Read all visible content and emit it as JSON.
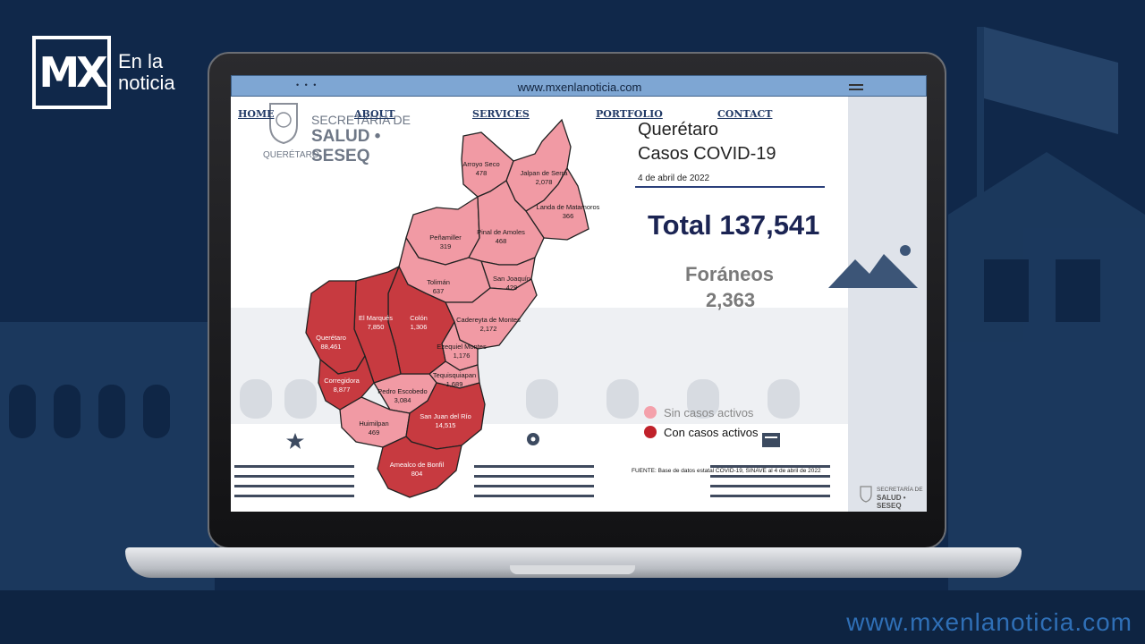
{
  "brand": {
    "logo_letters": "MX",
    "logo_text_line1": "En la",
    "logo_text_line2": "noticia",
    "footer_url": "www.mxenlanoticia.com"
  },
  "browser": {
    "url": "www.mxenlanoticia.com",
    "dots": "• • •",
    "nav": [
      "HOME",
      "ABOUT",
      "SERVICES",
      "PORTFOLIO",
      "CONTACT"
    ]
  },
  "agency": {
    "line1": "SECRETARÍA DE",
    "line2": "SALUD • SESEQ",
    "line3": "QUERÉTARO",
    "mini_line1": "SECRETARÍA DE",
    "mini_line2": "SALUD • SESEQ"
  },
  "report": {
    "title_line1": "Querétaro",
    "title_line2": "Casos COVID-19",
    "date": "4 de abril de 2022",
    "total": "Total 137,541",
    "foraneos_label": "Foráneos",
    "foraneos_value": "2,363",
    "legend": [
      {
        "label": "Sin casos activos",
        "color": "#f4a1ab"
      },
      {
        "label": "Con casos activos",
        "color": "#c0212a"
      }
    ],
    "source": "FUENTE: Base de datos estatal COVID-19, SINAVE al 4 de abril de 2022"
  },
  "municipalities": [
    {
      "name": "Arroyo Seco",
      "cases": "478",
      "active": false
    },
    {
      "name": "Jalpan de Serra",
      "cases": "2,078",
      "active": false
    },
    {
      "name": "Landa de Matamoros",
      "cases": "366",
      "active": false
    },
    {
      "name": "Peñamiller",
      "cases": "319",
      "active": false
    },
    {
      "name": "Pinal de Amoles",
      "cases": "468",
      "active": false
    },
    {
      "name": "San Joaquín",
      "cases": "429",
      "active": false
    },
    {
      "name": "Tolimán",
      "cases": "637",
      "active": false
    },
    {
      "name": "Cadereyta de Montes",
      "cases": "2,172",
      "active": false
    },
    {
      "name": "Ezequiel Montes",
      "cases": "1,176",
      "active": false
    },
    {
      "name": "Tequisquiapan",
      "cases": "1,689",
      "active": false
    },
    {
      "name": "Pedro Escobedo",
      "cases": "3,084",
      "active": false
    },
    {
      "name": "Huimilpan",
      "cases": "469",
      "active": false
    },
    {
      "name": "Colón",
      "cases": "1,306",
      "active": true
    },
    {
      "name": "El Marqués",
      "cases": "7,850",
      "active": true
    },
    {
      "name": "Querétaro",
      "cases": "88,461",
      "active": true
    },
    {
      "name": "Corregidora",
      "cases": "8,877",
      "active": true
    },
    {
      "name": "San Juan del Río",
      "cases": "14,515",
      "active": true
    },
    {
      "name": "Amealco de Bonfil",
      "cases": "804",
      "active": true
    }
  ]
}
